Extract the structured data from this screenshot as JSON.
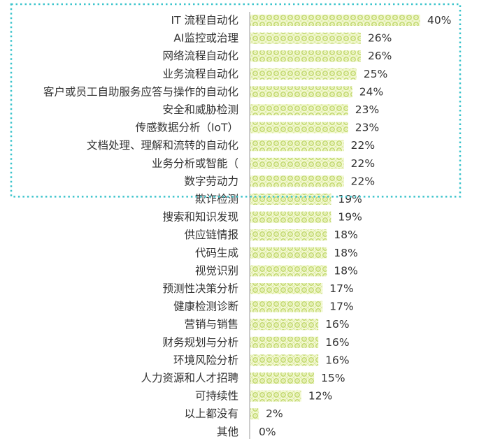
{
  "chart_data": {
    "type": "bar",
    "orientation": "horizontal",
    "categories": [
      "IT 流程自动化",
      "AI监控或治理",
      "网络流程自动化",
      "业务流程自动化",
      "客户或员工自助服务应答与操作的自动化",
      "安全和威胁检测",
      "传感数据分析（IoT）",
      "文档处理、理解和流转的自动化",
      "业务分析或智能（",
      "数字劳动力",
      "欺诈检测",
      "搜索和知识发现",
      "供应链情报",
      "代码生成",
      "视觉识别",
      "预测性决策分析",
      "健康检测诊断",
      "营销与销售",
      "财务规划与分析",
      "环境风险分析",
      "人力资源和人才招聘",
      "可持续性",
      "以上都没有",
      "其他"
    ],
    "values": [
      40,
      26,
      26,
      25,
      24,
      23,
      23,
      22,
      22,
      22,
      19,
      19,
      18,
      18,
      18,
      17,
      17,
      16,
      16,
      16,
      15,
      12,
      2,
      0
    ],
    "value_labels": [
      "40%",
      "26%",
      "26%",
      "25%",
      "24%",
      "23%",
      "23%",
      "22%",
      "22%",
      "22%",
      "19%",
      "19%",
      "18%",
      "18%",
      "18%",
      "17%",
      "17%",
      "16%",
      "16%",
      "16%",
      "15%",
      "12%",
      "2%",
      "0%"
    ],
    "unit": "%",
    "xlim": [
      0,
      40
    ],
    "grid": false,
    "highlight": {
      "first_index": 0,
      "last_index": 9,
      "style": "dotted-box"
    },
    "colors": {
      "bar_fill": "#f3f9d2",
      "bar_pattern": "#bcd462",
      "highlight_border": "#3cc4cc",
      "axis": "#999999",
      "text": "#333333"
    }
  }
}
